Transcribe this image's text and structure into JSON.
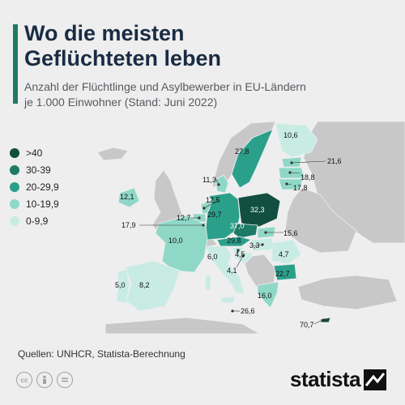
{
  "header": {
    "title_line1": "Wo die meisten",
    "title_line2": "Geflüchteten leben",
    "subtitle_line1": "Anzahl der Flüchtlinge und Asylbewerber in EU-Ländern",
    "subtitle_line2": "je 1.000 Einwohner (Stand: Juni 2022)"
  },
  "legend": [
    {
      "label": ">40",
      "color": "#124f40"
    },
    {
      "label": "30-39",
      "color": "#1d7a66"
    },
    {
      "label": "20-29,9",
      "color": "#2aa08b"
    },
    {
      "label": "10-19,9",
      "color": "#8fd8c7"
    },
    {
      "label": "0-9,9",
      "color": "#c8ece4"
    }
  ],
  "map": {
    "land_color": "#c8c8c8",
    "sea_color": "#eeeeee",
    "values": {
      "sweden": "27,8",
      "finland": "10,6",
      "estonia": "21,6",
      "latvia": "18,8",
      "lithuania": "17,8",
      "denmark": "11,3",
      "ireland": "12,1",
      "netherlands": "12,5",
      "belgium": "12,7",
      "luxembourg": "17,9",
      "germany": "29,7",
      "poland": "32,3",
      "czechia": "37,0",
      "austria": "29,8",
      "slovakia": "15,6",
      "hungary": "3,3",
      "slovenia": "4,5",
      "croatia": "4,1",
      "romania": "4,7",
      "bulgaria": "22,7",
      "greece": "16,0",
      "france": "10,0",
      "italy": "6,0",
      "spain": "8,2",
      "portugal": "5,0",
      "malta": "26,6",
      "cyprus": "70,7"
    }
  },
  "footer": {
    "source": "Quellen: UNHCR, Statista-Berechnung",
    "brand": "statista",
    "license_icons": [
      "cc-icon",
      "by-icon",
      "nd-icon"
    ]
  }
}
